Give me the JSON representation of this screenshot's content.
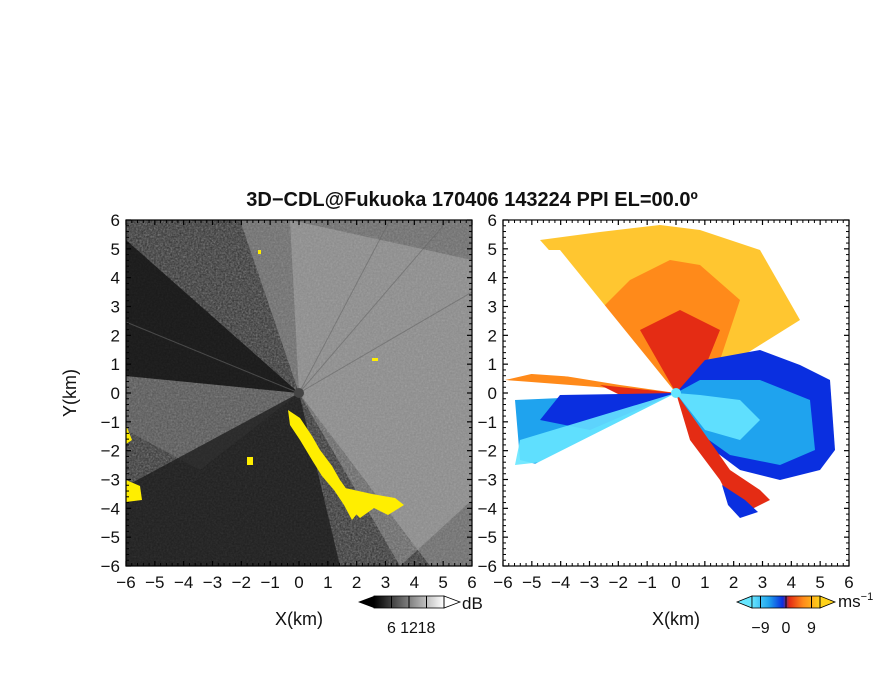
{
  "chart_data": {
    "type": "heatmap",
    "title": "3D−CDL@Fukuoka 170406 143224 PPI EL=00.0º",
    "panels": [
      {
        "name": "reflectivity",
        "xlabel": "X(km)",
        "ylabel": "Y(km)",
        "xlim": [
          -6,
          6
        ],
        "ylim": [
          -6,
          6
        ],
        "xticks": [
          "−6",
          "−5",
          "−4",
          "−3",
          "−2",
          "−1",
          "0",
          "1",
          "2",
          "3",
          "4",
          "5",
          "6"
        ],
        "yticks": [
          "−6",
          "−5",
          "−4",
          "−3",
          "−2",
          "−1",
          "0",
          "1",
          "2",
          "3",
          "4",
          "5",
          "6"
        ],
        "colorbar": {
          "unit": "dB",
          "ticks": [
            "6",
            "12",
            "18"
          ],
          "range": [
            0,
            24
          ],
          "palette": "grayscale"
        },
        "overlay_color": "#ffee00"
      },
      {
        "name": "doppler-velocity",
        "xlabel": "X(km)",
        "xlim": [
          -6,
          6
        ],
        "ylim": [
          -6,
          6
        ],
        "xticks": [
          "−6",
          "−5",
          "−4",
          "−3",
          "−2",
          "−1",
          "0",
          "1",
          "2",
          "3",
          "4",
          "5",
          "6"
        ],
        "yticks": [
          "−6",
          "−5",
          "−4",
          "−3",
          "−2",
          "−1",
          "0",
          "1",
          "2",
          "3",
          "4",
          "5",
          "6"
        ],
        "colorbar": {
          "unit": "ms",
          "unit_sup": "−1",
          "ticks": [
            "−9",
            "0",
            "9"
          ],
          "range": [
            -12,
            12
          ],
          "palette": "cyan-blue-red-yellow"
        }
      }
    ]
  }
}
